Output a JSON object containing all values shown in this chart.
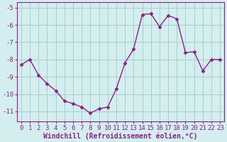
{
  "x": [
    0,
    1,
    2,
    3,
    4,
    5,
    6,
    7,
    8,
    9,
    10,
    11,
    12,
    13,
    14,
    15,
    16,
    17,
    18,
    19,
    20,
    21,
    22,
    23
  ],
  "y": [
    -8.3,
    -8.0,
    -8.9,
    -9.4,
    -9.8,
    -10.4,
    -10.55,
    -10.75,
    -11.1,
    -10.85,
    -10.75,
    -9.7,
    -8.2,
    -7.4,
    -5.4,
    -5.35,
    -6.1,
    -5.45,
    -5.65,
    -7.6,
    -7.55,
    -8.65,
    -8.0,
    -8.0
  ],
  "line_color": "#882288",
  "marker": "D",
  "marker_size": 2.5,
  "bg_color": "#d4eef0",
  "grid_color": "#aacccc",
  "xlabel": "Windchill (Refroidissement éolien,°C)",
  "xlim": [
    -0.5,
    23.5
  ],
  "ylim": [
    -11.6,
    -4.7
  ],
  "yticks": [
    -11,
    -10,
    -9,
    -8,
    -7,
    -6,
    -5
  ],
  "xticks": [
    0,
    1,
    2,
    3,
    4,
    5,
    6,
    7,
    8,
    9,
    10,
    11,
    12,
    13,
    14,
    15,
    16,
    17,
    18,
    19,
    20,
    21,
    22,
    23
  ],
  "tick_fontsize": 6.5,
  "xlabel_fontsize": 7,
  "line_width": 1.0
}
